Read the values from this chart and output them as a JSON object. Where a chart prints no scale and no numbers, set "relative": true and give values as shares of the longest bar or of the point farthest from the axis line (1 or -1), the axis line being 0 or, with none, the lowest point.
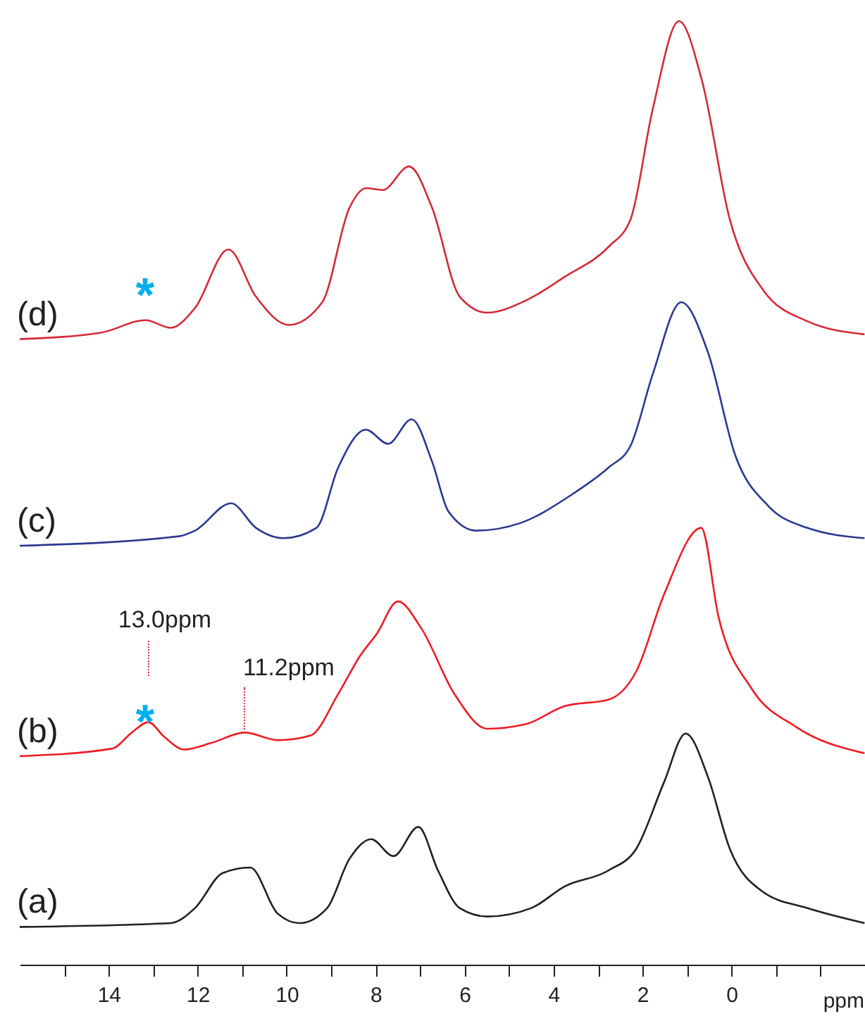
{
  "chart_data": {
    "type": "line",
    "relative": true,
    "xlabel": "ppm",
    "xlim": [
      16,
      -3
    ],
    "xticks": [
      {
        "value": 15,
        "label": null
      },
      14,
      {
        "value": 13,
        "label": null
      },
      12,
      {
        "value": 11,
        "label": null
      },
      10,
      {
        "value": 9,
        "label": null
      },
      8,
      {
        "value": 7,
        "label": null
      },
      6,
      {
        "value": 5,
        "label": null
      },
      4,
      {
        "value": 3,
        "label": null
      },
      2,
      {
        "value": 1,
        "label": null
      },
      0,
      {
        "value": -1,
        "label": null
      },
      {
        "value": -2,
        "label": null
      }
    ],
    "series": [
      {
        "name": "(d)",
        "color": "#d42a3a",
        "x": [
          16.0,
          14.16,
          13.17,
          12.61,
          12.06,
          11.31,
          10.69,
          9.95,
          9.2,
          8.59,
          8.22,
          7.84,
          7.25,
          6.73,
          6.11,
          5.49,
          4.62,
          3.75,
          2.76,
          2.27,
          1.77,
          1.18,
          0.66,
          0.04,
          -0.71,
          -1.7,
          -2.99
        ],
        "values": [
          0.663,
          0.67,
          0.683,
          0.675,
          0.696,
          0.758,
          0.708,
          0.678,
          0.702,
          0.802,
          0.823,
          0.821,
          0.846,
          0.802,
          0.708,
          0.691,
          0.704,
          0.729,
          0.761,
          0.79,
          0.907,
          1.0,
          0.936,
          0.79,
          0.715,
          0.682,
          0.668
        ]
      },
      {
        "name": "(c)",
        "color": "#2b3990",
        "x": [
          16.0,
          12.43,
          12.06,
          11.25,
          10.69,
          10.07,
          9.33,
          8.84,
          8.22,
          7.72,
          7.19,
          6.73,
          6.36,
          5.74,
          4.75,
          3.63,
          2.76,
          2.27,
          1.77,
          1.13,
          0.53,
          -0.09,
          -0.83,
          -1.7,
          -2.99
        ],
        "values": [
          0.444,
          0.454,
          0.46,
          0.489,
          0.463,
          0.452,
          0.463,
          0.527,
          0.567,
          0.552,
          0.578,
          0.533,
          0.48,
          0.46,
          0.468,
          0.497,
          0.527,
          0.55,
          0.626,
          0.702,
          0.649,
          0.539,
          0.486,
          0.463,
          0.452
        ]
      },
      {
        "name": "(b)",
        "color": "#ee1c25",
        "x": [
          16.0,
          13.92,
          13.48,
          13.11,
          12.74,
          12.3,
          11.69,
          10.94,
          10.2,
          9.46,
          8.84,
          8.34,
          7.97,
          7.5,
          6.98,
          6.23,
          5.49,
          4.62,
          3.75,
          2.76,
          2.14,
          1.52,
          0.68,
          0.29,
          -0.46,
          -1.45,
          -2.99
        ],
        "values": [
          0.221,
          0.229,
          0.246,
          0.257,
          0.241,
          0.228,
          0.235,
          0.246,
          0.238,
          0.243,
          0.287,
          0.328,
          0.351,
          0.385,
          0.357,
          0.287,
          0.25,
          0.255,
          0.274,
          0.281,
          0.311,
          0.392,
          0.463,
          0.368,
          0.292,
          0.252,
          0.224
        ]
      },
      {
        "name": "(a)",
        "color": "#231f20",
        "x": [
          16.0,
          12.61,
          12.06,
          11.44,
          10.82,
          10.2,
          9.71,
          9.09,
          8.59,
          8.1,
          7.6,
          7.04,
          6.6,
          6.11,
          5.49,
          4.5,
          3.75,
          2.76,
          2.14,
          1.52,
          1.03,
          0.53,
          0.04,
          -0.71,
          -1.7,
          -2.99
        ],
        "values": [
          0.04,
          0.044,
          0.06,
          0.097,
          0.103,
          0.054,
          0.044,
          0.06,
          0.112,
          0.133,
          0.115,
          0.146,
          0.1,
          0.06,
          0.051,
          0.06,
          0.083,
          0.1,
          0.123,
          0.193,
          0.245,
          0.199,
          0.123,
          0.077,
          0.06,
          0.044
        ]
      }
    ],
    "annotations": [
      "*",
      "*",
      "13.0ppm",
      "11.2ppm"
    ]
  }
}
